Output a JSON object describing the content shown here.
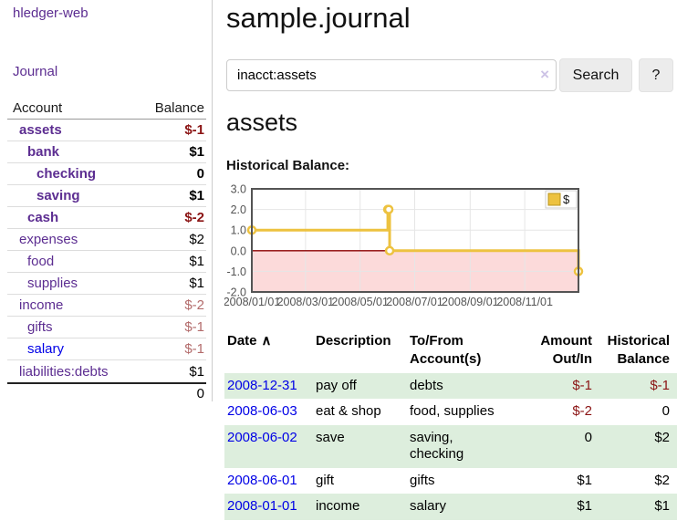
{
  "sidebar": {
    "brand": "hledger-web",
    "journal_link": "Journal",
    "columns": {
      "account": "Account",
      "balance": "Balance"
    },
    "accounts": [
      {
        "name": "assets",
        "balance": "$-1"
      },
      {
        "name": "bank",
        "balance": "$1"
      },
      {
        "name": "checking",
        "balance": "0"
      },
      {
        "name": "saving",
        "balance": "$1"
      },
      {
        "name": "cash",
        "balance": "$-2"
      },
      {
        "name": "expenses",
        "balance": "$2"
      },
      {
        "name": "food",
        "balance": "$1"
      },
      {
        "name": "supplies",
        "balance": "$1"
      },
      {
        "name": "income",
        "balance": "$-2"
      },
      {
        "name": "gifts",
        "balance": "$-1"
      },
      {
        "name": "salary",
        "balance": "$-1"
      },
      {
        "name": "liabilities:debts",
        "balance": "$1"
      }
    ],
    "total": "0"
  },
  "main": {
    "title": "sample.journal",
    "search": {
      "value": "inacct:assets",
      "clear_icon": "×",
      "search_button": "Search",
      "help_button": "?"
    },
    "account_heading": "assets",
    "section_label": "Historical Balance:"
  },
  "chart_data": {
    "type": "line",
    "step": true,
    "title": "Historical Balance",
    "legend": [
      {
        "label": "$",
        "color": "#edc240"
      }
    ],
    "legend_position": "top-right",
    "x": [
      "2008-01-01",
      "2008-06-01",
      "2008-06-02",
      "2008-06-03",
      "2008-12-31"
    ],
    "series": [
      {
        "name": "$",
        "values": [
          1,
          2,
          2,
          0,
          -1
        ]
      }
    ],
    "xlim": [
      "2008-01-01",
      "2008-12-31"
    ],
    "ylim": [
      -2,
      3
    ],
    "yticks": [
      3,
      2,
      1,
      0,
      -1,
      -2
    ],
    "xtick_labels": [
      "2008/01/01",
      "2008/03/01",
      "2008/05/01",
      "2008/07/01",
      "2008/09/01",
      "2008/11/01"
    ],
    "grid": true,
    "colors": {
      "series": "#edc240",
      "negative_region": "#fcdada",
      "zero_line": "#8b0000",
      "plot_border": "#545454",
      "gridline": "#e6e6e6"
    }
  },
  "register": {
    "headers": {
      "date": "Date",
      "sort_icon": "∧",
      "description": "Description",
      "tofrom": "To/From Account(s)",
      "amount": "Amount Out/In",
      "historical": "Historical Balance"
    },
    "rows": [
      {
        "date": "2008-12-31",
        "description": "pay off",
        "tofrom": "debts",
        "amount": "$-1",
        "historical": "$-1"
      },
      {
        "date": "2008-06-03",
        "description": "eat & shop",
        "tofrom": "food, supplies",
        "amount": "$-2",
        "historical": "0"
      },
      {
        "date": "2008-06-02",
        "description": "save",
        "tofrom": "saving,\nchecking",
        "amount": "0",
        "historical": "$2"
      },
      {
        "date": "2008-06-01",
        "description": "gift",
        "tofrom": "gifts",
        "amount": "$1",
        "historical": "$2"
      },
      {
        "date": "2008-01-01",
        "description": "income",
        "tofrom": "salary",
        "amount": "$1",
        "historical": "$1"
      }
    ]
  }
}
